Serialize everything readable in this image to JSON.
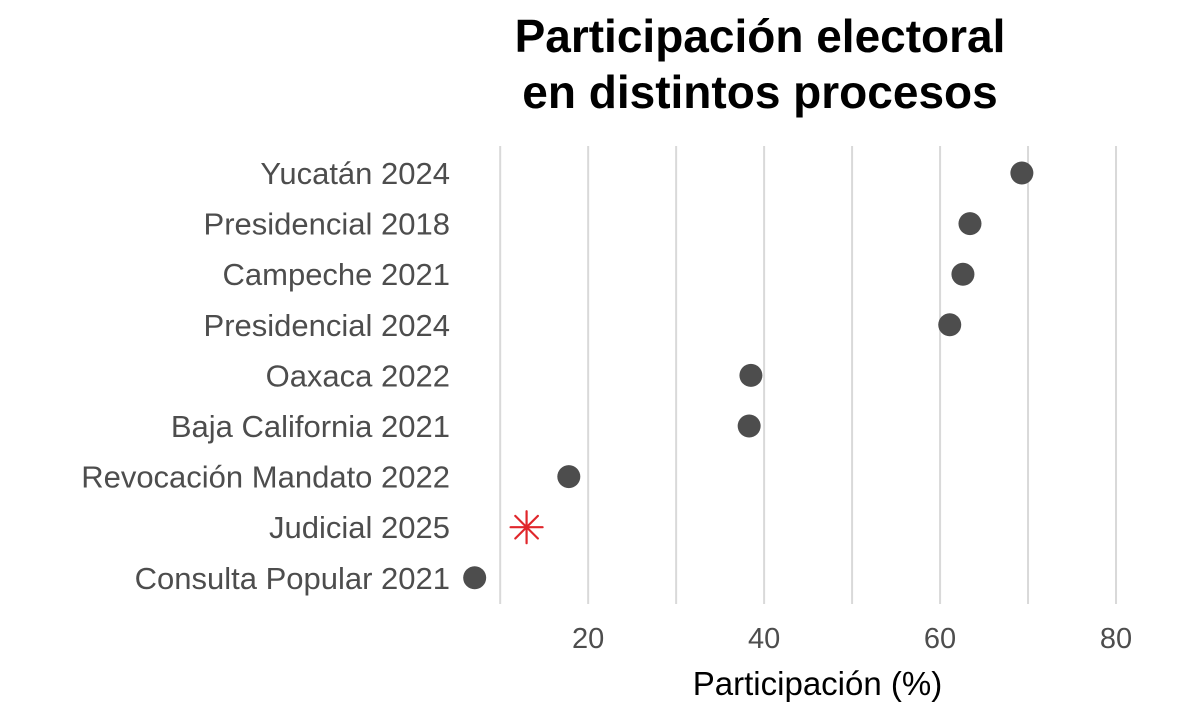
{
  "chart_data": {
    "type": "scatter",
    "title": [
      "Participación electoral",
      "en distintos procesos"
    ],
    "xlabel": "Participación (%)",
    "ylabel": "",
    "xlim": [
      6,
      85
    ],
    "xticks": [
      20,
      40,
      60,
      80
    ],
    "grid": true,
    "legend": "none",
    "points": [
      {
        "label": "Yucatán 2024",
        "value": 69.3,
        "marker": "dot"
      },
      {
        "label": "Presidencial 2018",
        "value": 63.4,
        "marker": "dot"
      },
      {
        "label": "Campeche 2021",
        "value": 62.6,
        "marker": "dot"
      },
      {
        "label": "Presidencial 2024",
        "value": 61.1,
        "marker": "dot"
      },
      {
        "label": "Oaxaca 2022",
        "value": 38.5,
        "marker": "dot"
      },
      {
        "label": "Baja California 2021",
        "value": 38.3,
        "marker": "dot"
      },
      {
        "label": "Revocación Mandato 2022",
        "value": 17.8,
        "marker": "dot"
      },
      {
        "label": "Judicial 2025",
        "value": 13.0,
        "marker": "asterisk"
      },
      {
        "label": "Consulta Popular 2021",
        "value": 7.1,
        "marker": "dot"
      }
    ],
    "colors": {
      "dot": "#4d4d4d",
      "highlight": "#e0262b",
      "grid": "#d9d9d9"
    }
  }
}
